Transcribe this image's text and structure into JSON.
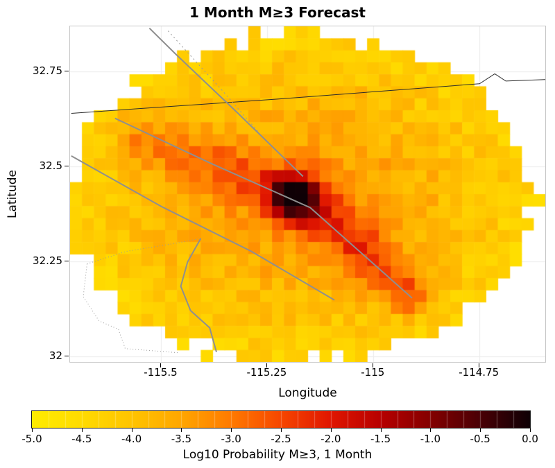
{
  "page": {
    "title": "1 Month M≥3 Forecast"
  },
  "axes": {
    "x_label": "Longitude",
    "y_label": "Latitude",
    "x_ticks": [
      {
        "value": -115.5,
        "label": "-115.5"
      },
      {
        "value": -115.25,
        "label": "-115.25"
      },
      {
        "value": -115.0,
        "label": "-115"
      },
      {
        "value": -114.75,
        "label": "-114.75"
      }
    ],
    "y_ticks": [
      {
        "value": 32.75,
        "label": "32.75"
      },
      {
        "value": 32.5,
        "label": "32.5"
      },
      {
        "value": 32.25,
        "label": "32.25"
      },
      {
        "value": 32.0,
        "label": "32"
      }
    ]
  },
  "colorbar": {
    "label": "Log10 Probability M≥3, 1 Month",
    "min": -5,
    "max": 0,
    "ticks": [
      {
        "value": -5.0,
        "label": "-5.0"
      },
      {
        "value": -4.5,
        "label": "-4.5"
      },
      {
        "value": -4.0,
        "label": "-4.0"
      },
      {
        "value": -3.5,
        "label": "-3.5"
      },
      {
        "value": -3.0,
        "label": "-3.0"
      },
      {
        "value": -2.5,
        "label": "-2.5"
      },
      {
        "value": -2.0,
        "label": "-2.0"
      },
      {
        "value": -1.5,
        "label": "-1.5"
      },
      {
        "value": -1.0,
        "label": "-1.0"
      },
      {
        "value": -0.5,
        "label": "-0.5"
      },
      {
        "value": 0.0,
        "label": "0.0"
      }
    ]
  },
  "chart_data": {
    "type": "heatmap",
    "title": "1 Month M≥3 Forecast",
    "xlabel": "Longitude",
    "ylabel": "Latitude",
    "value_label": "Log10 Probability M≥3, 1 Month",
    "xlim": [
      -115.715,
      -114.595
    ],
    "ylim": [
      31.985,
      32.868
    ],
    "value_range": [
      -5,
      0
    ],
    "grid": {
      "ncols": 40,
      "nrows": 28
    },
    "field": {
      "description": "Gridded log10 probability of M>=3 earthquake in 1 month over an elliptical forecast region; yellow background ~-4.5, rising toward center, a red ridge along the main NW-SE fault, and a near-black hotspot peaking ~0 at (-115.185, 32.42).",
      "mask": {
        "center": [
          -115.17,
          32.415
        ],
        "semi_axes": [
          0.545,
          0.43
        ],
        "threshold": 1.0,
        "edge_jitter": 0.22
      },
      "base": {
        "offset": -4.78,
        "amplitude": 1.45,
        "decay": 1.1
      },
      "noise_amplitude": 0.33,
      "ridges": [
        {
          "points": [
            [
              -115.55,
              32.575
            ],
            [
              -115.3,
              32.468
            ],
            [
              -115.185,
              32.42
            ]
          ],
          "amplitude": 0.95,
          "sigma": 0.065
        },
        {
          "points": [
            [
              -115.185,
              32.42
            ],
            [
              -115.04,
              32.3
            ],
            [
              -114.92,
              32.165
            ]
          ],
          "amplitude": 1.35,
          "sigma": 0.06
        }
      ],
      "hotspot": {
        "center": [
          -115.185,
          32.42
        ],
        "amplitude": 2.0,
        "sigma": 0.055,
        "peak_value": 0.0
      }
    },
    "colormap": {
      "stops": [
        [
          -5.0,
          "#ffec00"
        ],
        [
          -4.5,
          "#ffdb00"
        ],
        [
          -4.0,
          "#ffc400"
        ],
        [
          -3.5,
          "#ffa600"
        ],
        [
          -3.0,
          "#ff7a00"
        ],
        [
          -2.5,
          "#f64600"
        ],
        [
          -2.0,
          "#e01600"
        ],
        [
          -1.5,
          "#b70000"
        ],
        [
          -1.0,
          "#840000"
        ],
        [
          -0.5,
          "#4a0005"
        ],
        [
          0.0,
          "#0f0005"
        ]
      ]
    },
    "overlays": {
      "lines": [
        {
          "name": "boundary-line",
          "color": "#2a2a2a",
          "width": 1,
          "dash": "",
          "points": [
            [
              -115.712,
              32.639
            ],
            [
              -115.223,
              32.677
            ],
            [
              -114.75,
              32.717
            ],
            [
              -114.714,
              32.743
            ],
            [
              -114.688,
              32.724
            ],
            [
              -114.595,
              32.728
            ]
          ]
        },
        {
          "name": "fault-line-steep",
          "color": "#8f8f8f",
          "width": 2,
          "dash": "",
          "points": [
            [
              -115.528,
              32.863
            ],
            [
              -115.467,
              32.796
            ],
            [
              -115.321,
              32.641
            ],
            [
              -115.166,
              32.473
            ]
          ]
        },
        {
          "name": "fault-line-steep-dotted",
          "color": "#9a9a9a",
          "width": 1,
          "dash": "2,4",
          "points": [
            [
              -115.484,
              32.856
            ],
            [
              -115.353,
              32.695
            ],
            [
              -115.268,
              32.586
            ]
          ]
        },
        {
          "name": "fault-line-main",
          "color": "#8f8f8f",
          "width": 2,
          "dash": "",
          "points": [
            [
              -115.609,
              32.626
            ],
            [
              -115.386,
              32.509
            ],
            [
              -115.149,
              32.391
            ],
            [
              -114.909,
              32.153
            ]
          ]
        },
        {
          "name": "fault-line-south",
          "color": "#8f8f8f",
          "width": 2,
          "dash": "",
          "points": [
            [
              -115.712,
              32.527
            ],
            [
              -115.5,
              32.394
            ],
            [
              -115.288,
              32.276
            ],
            [
              -115.092,
              32.148
            ]
          ]
        },
        {
          "name": "fault-line-curved",
          "color": "#8f8f8f",
          "width": 2,
          "dash": "",
          "points": [
            [
              -115.407,
              32.31
            ],
            [
              -115.438,
              32.248
            ],
            [
              -115.454,
              32.184
            ],
            [
              -115.431,
              32.12
            ],
            [
              -115.386,
              32.075
            ],
            [
              -115.37,
              32.011
            ]
          ]
        },
        {
          "name": "dotted-outline-upper",
          "color": "#9a9a9a",
          "width": 1,
          "dash": "1,3",
          "points": [
            [
              -115.675,
              32.243
            ],
            [
              -115.582,
              32.276
            ],
            [
              -115.467,
              32.297
            ],
            [
              -115.407,
              32.31
            ]
          ]
        },
        {
          "name": "dotted-outline-lower",
          "color": "#9a9a9a",
          "width": 1,
          "dash": "1,3",
          "points": [
            [
              -115.675,
              32.243
            ],
            [
              -115.684,
              32.157
            ],
            [
              -115.647,
              32.093
            ],
            [
              -115.601,
              32.071
            ],
            [
              -115.585,
              32.02
            ],
            [
              -115.459,
              32.009
            ]
          ]
        }
      ]
    }
  }
}
